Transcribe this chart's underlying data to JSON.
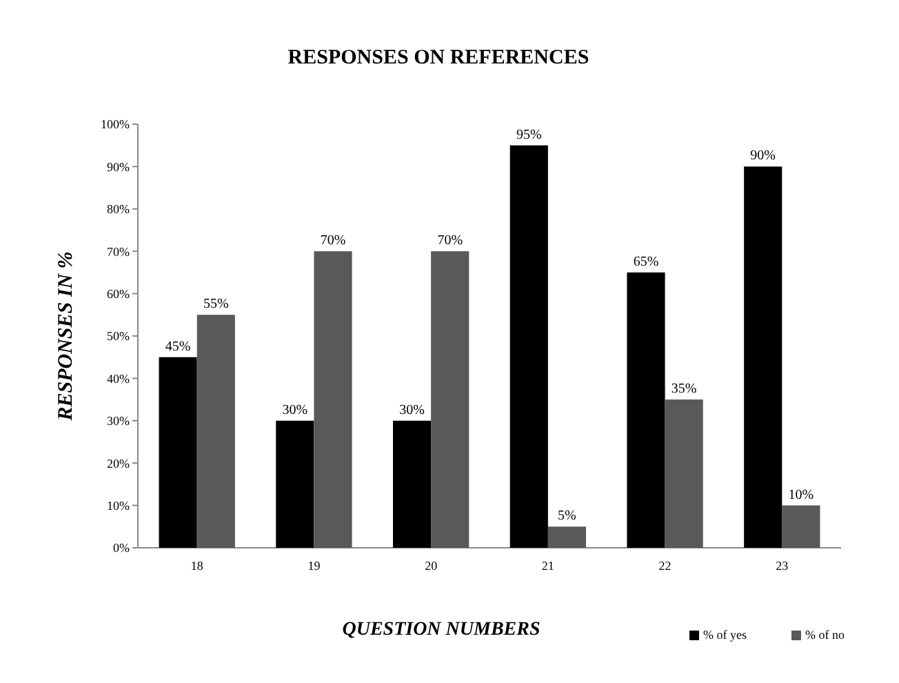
{
  "chart_data": {
    "type": "bar",
    "title": "RESPONSES ON REFERENCES",
    "xlabel": "QUESTION NUMBERS",
    "ylabel": "RESPONSES IN %",
    "categories": [
      "18",
      "19",
      "20",
      "21",
      "22",
      "23"
    ],
    "series": [
      {
        "name": "% of yes",
        "color": "#000000",
        "values": [
          45,
          30,
          30,
          95,
          65,
          90
        ],
        "value_labels": [
          "45%",
          "30%",
          "30%",
          "95%",
          "65%",
          "90%"
        ]
      },
      {
        "name": "% of no",
        "color": "#595959",
        "values": [
          55,
          70,
          70,
          5,
          35,
          10
        ],
        "value_labels": [
          "55%",
          "70%",
          "70%",
          "5%",
          "35%",
          "10%"
        ]
      }
    ],
    "ylim": [
      0,
      100
    ],
    "yticks": [
      {
        "value": 0,
        "label": "0%"
      },
      {
        "value": 10,
        "label": "10%"
      },
      {
        "value": 20,
        "label": "20%"
      },
      {
        "value": 30,
        "label": "30%"
      },
      {
        "value": 40,
        "label": "40%"
      },
      {
        "value": 50,
        "label": "50%"
      },
      {
        "value": 60,
        "label": "60%"
      },
      {
        "value": 70,
        "label": "70%"
      },
      {
        "value": 80,
        "label": "80%"
      },
      {
        "value": 90,
        "label": "90%"
      },
      {
        "value": 100,
        "label": "100%"
      }
    ],
    "legend": "bottom right"
  }
}
